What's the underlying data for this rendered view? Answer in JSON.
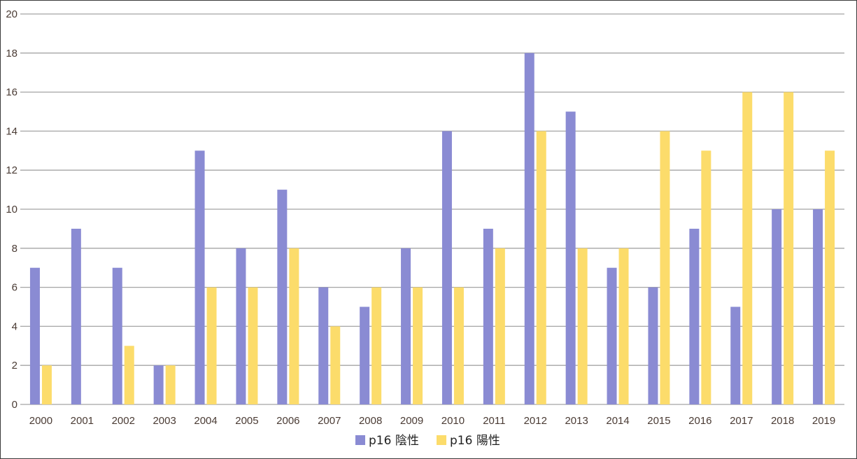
{
  "chart_data": {
    "type": "bar",
    "categories": [
      "2000",
      "2001",
      "2002",
      "2003",
      "2004",
      "2005",
      "2006",
      "2007",
      "2008",
      "2009",
      "2010",
      "2011",
      "2012",
      "2013",
      "2014",
      "2015",
      "2016",
      "2017",
      "2018",
      "2019"
    ],
    "series": [
      {
        "name": "p16 陰性",
        "color": "#8a8bd3",
        "values": [
          7,
          9,
          7,
          2,
          13,
          8,
          11,
          6,
          5,
          8,
          14,
          9,
          18,
          15,
          7,
          6,
          9,
          5,
          10,
          10
        ]
      },
      {
        "name": "p16 陽性",
        "color": "#fcdc6b",
        "values": [
          2,
          0,
          3,
          2,
          6,
          6,
          8,
          4,
          6,
          6,
          6,
          8,
          14,
          8,
          8,
          14,
          13,
          16,
          16,
          13
        ]
      }
    ],
    "yticks": [
      "0",
      "2",
      "4",
      "6",
      "8",
      "10",
      "12",
      "14",
      "16",
      "18",
      "20"
    ],
    "ylim": [
      0,
      20
    ],
    "grid": true,
    "legend_position": "bottom-center",
    "gridline_color": "#a5a5a5",
    "tick_color": "#4a3b34"
  }
}
